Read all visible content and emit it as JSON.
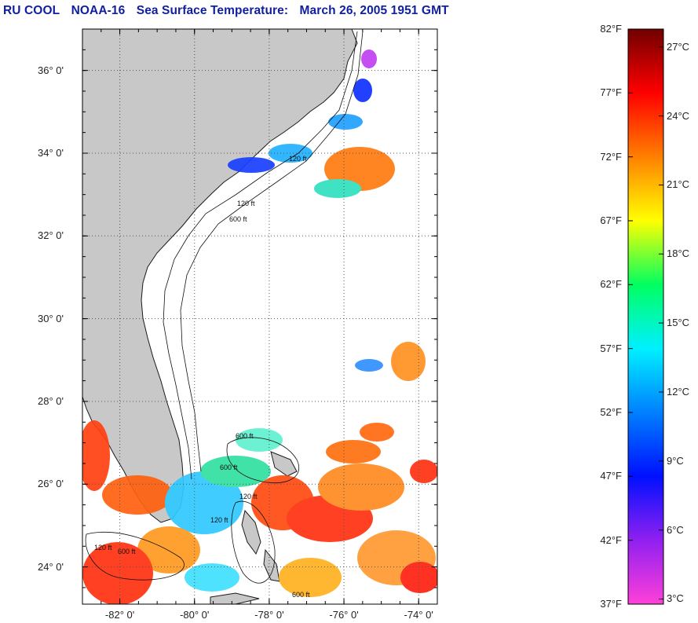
{
  "title": {
    "source": "RU COOL",
    "satellite": "NOAA-16",
    "product": "Sea Surface Temperature:",
    "datetime": "March 26, 2005 1951 GMT"
  },
  "map": {
    "lon_range": [
      -83,
      -73.5
    ],
    "lat_range": [
      23.1,
      37
    ],
    "lat_labels": [
      "24° 0'",
      "26° 0'",
      "28° 0'",
      "30° 0'",
      "32° 0'",
      "34° 0'",
      "36° 0'"
    ],
    "lat_values": [
      24,
      26,
      28,
      30,
      32,
      34,
      36
    ],
    "lon_labels": [
      "-82° 0'",
      "-80° 0'",
      "-78° 0'",
      "-76° 0'",
      "-74° 0'"
    ],
    "lon_values": [
      -82,
      -80,
      -78,
      -76,
      -74
    ],
    "land_color": "#c8c8c8",
    "ocean_color": "#ffffff",
    "contour_labels": [
      "120 ft",
      "600 ft"
    ]
  },
  "colorbar": {
    "fahrenheit_labels": [
      "82°F",
      "77°F",
      "72°F",
      "67°F",
      "62°F",
      "57°F",
      "52°F",
      "47°F",
      "42°F",
      "37°F"
    ],
    "celsius_labels": [
      "27°C",
      "24°C",
      "21°C",
      "18°C",
      "15°C",
      "12°C",
      "9°C",
      "6°C",
      "3°C"
    ],
    "celsius_values": [
      27,
      24,
      21,
      18,
      15,
      12,
      9,
      6,
      3
    ],
    "min_f": 37,
    "max_f": 82,
    "colors": [
      "#ff40d8",
      "#9020f0",
      "#0010ff",
      "#0080ff",
      "#00f0ff",
      "#00ff60",
      "#ffff00",
      "#ff8000",
      "#ff0000",
      "#700000"
    ]
  }
}
